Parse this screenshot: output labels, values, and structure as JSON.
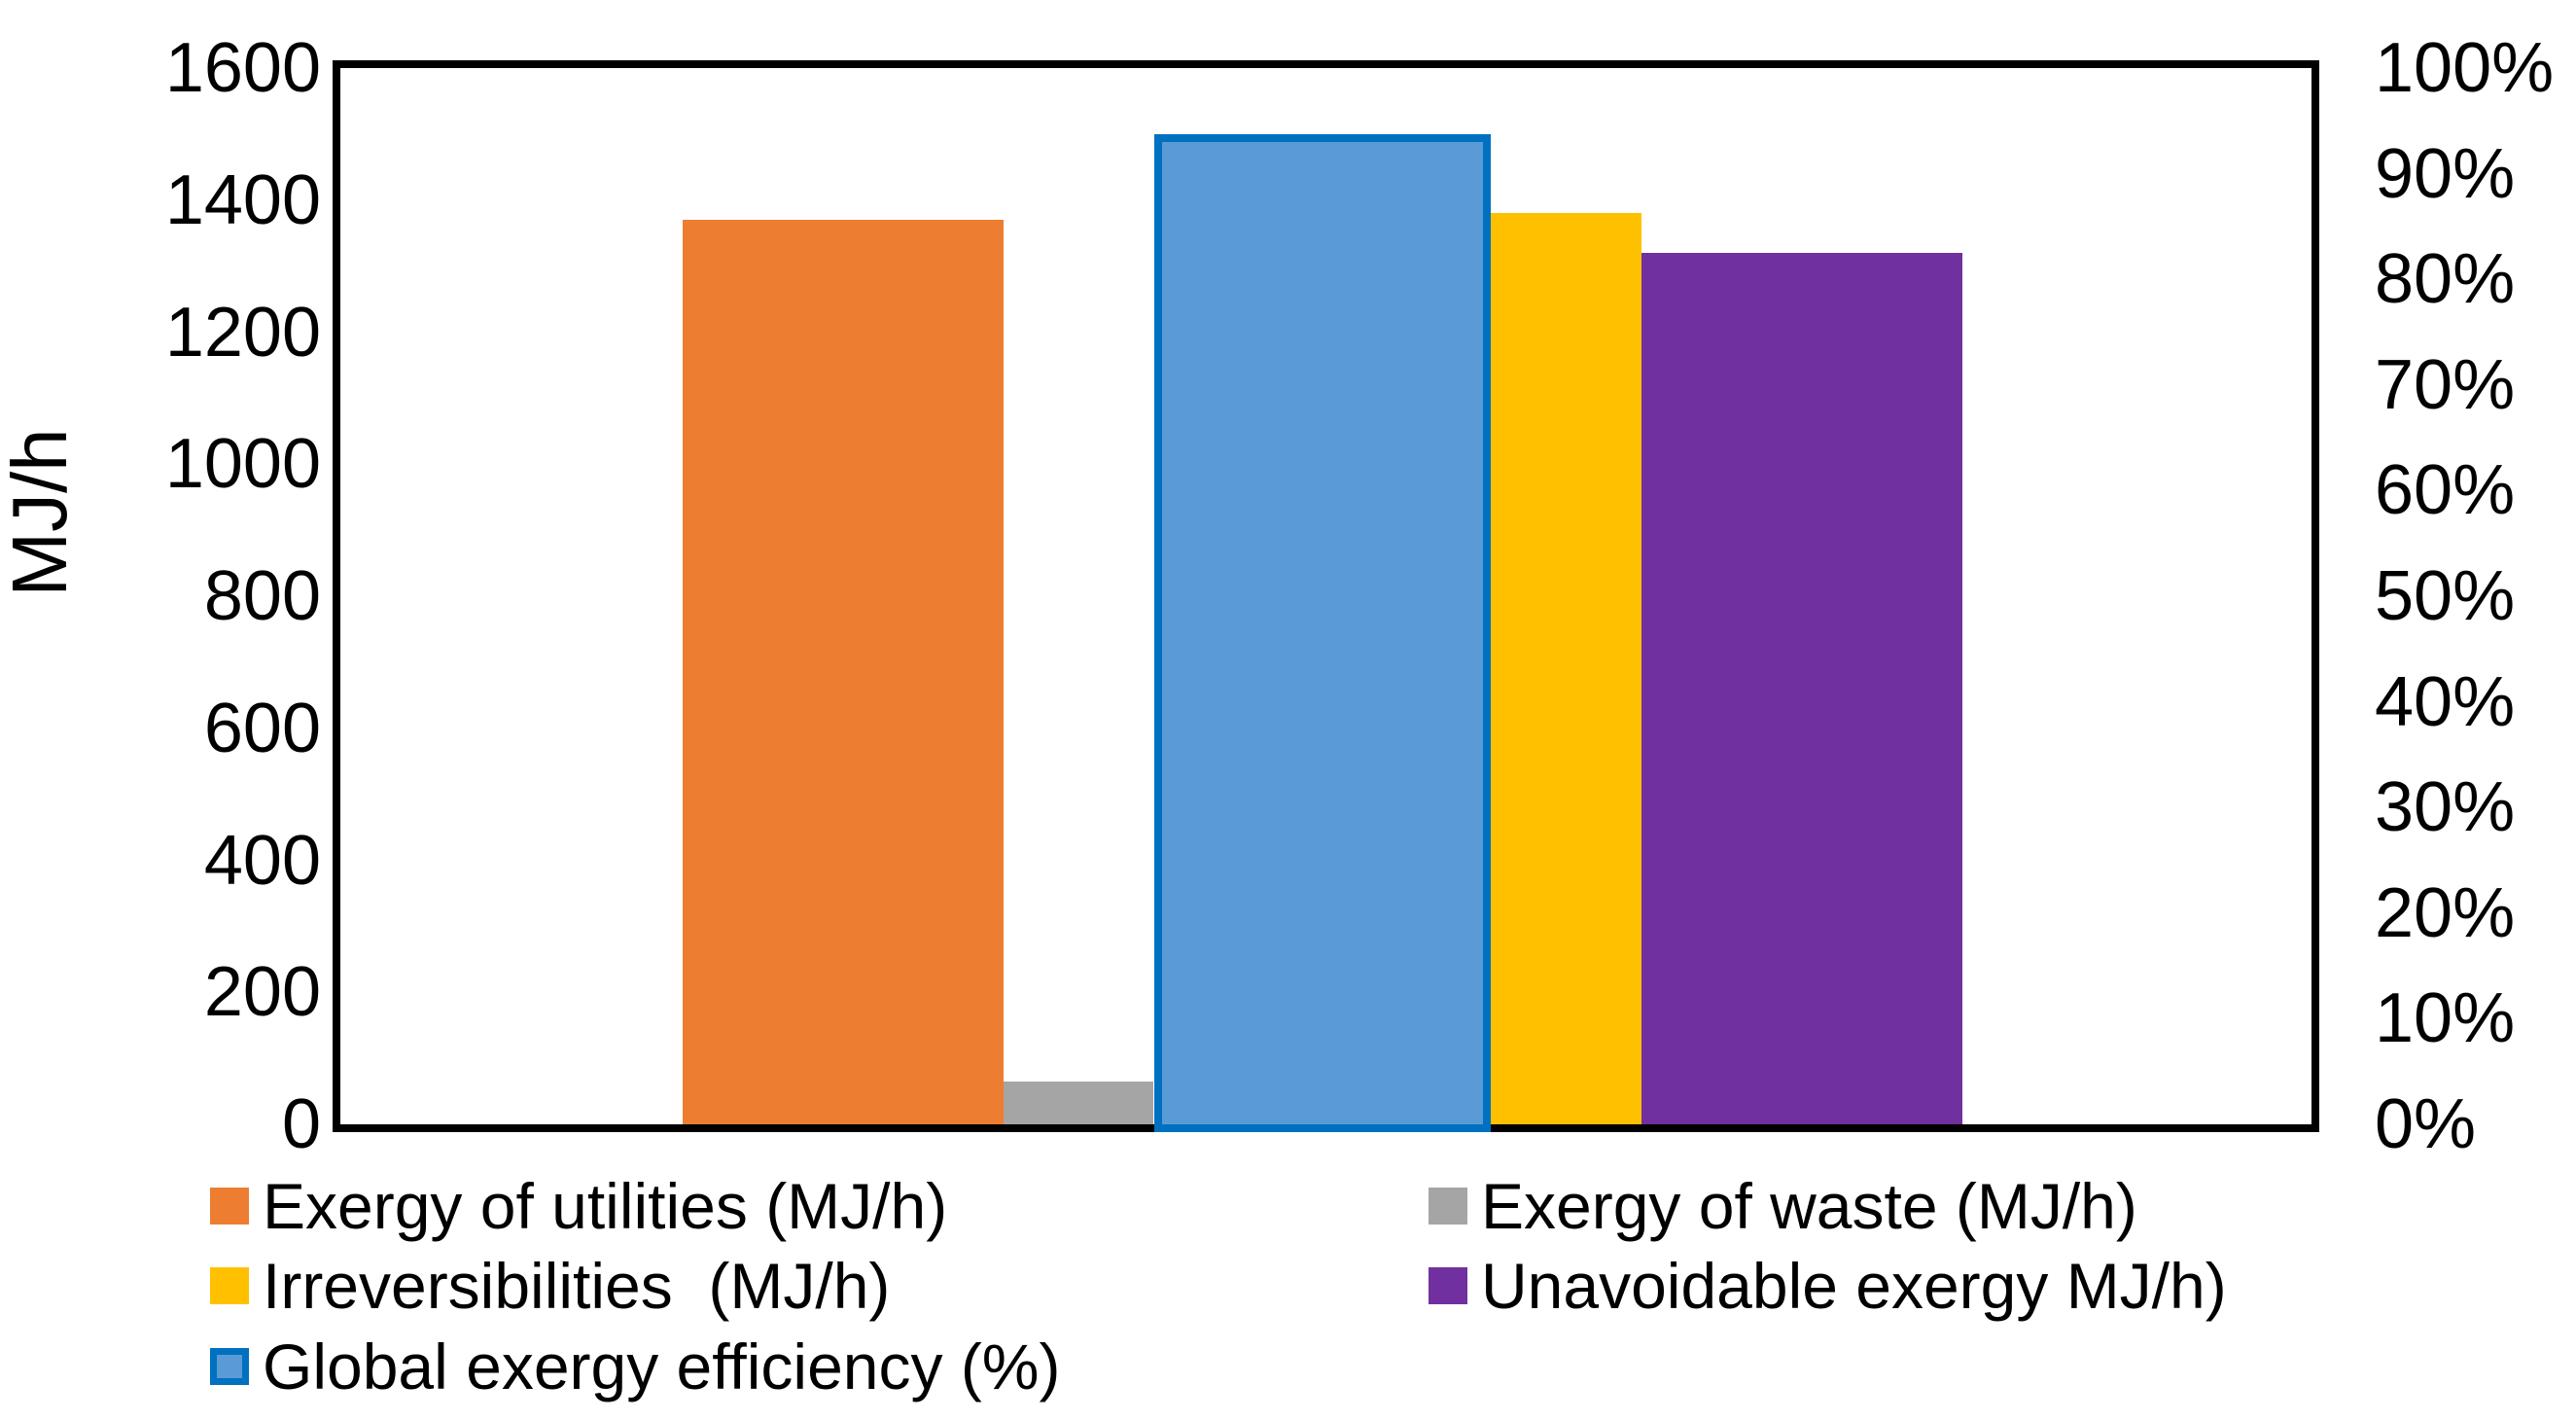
{
  "chart_data": {
    "type": "bar",
    "title": "",
    "left_axis": {
      "label": "MJ/h",
      "min": 0,
      "max": 1600,
      "ticks": [
        "1600",
        "1400",
        "1200",
        "1000",
        "800",
        "600",
        "400",
        "200",
        "0"
      ]
    },
    "right_axis": {
      "label": "",
      "min": 0,
      "max": 100,
      "unit": "%",
      "ticks": [
        "100%",
        "90%",
        "80%",
        "70%",
        "60%",
        "50%",
        "40%",
        "30%",
        "20%",
        "10%",
        "0%"
      ]
    },
    "categories": [
      ""
    ],
    "series": [
      {
        "name": "Exergy of utilities (MJ/h)",
        "value": 1370,
        "axis": "left",
        "color": "#ED7D31"
      },
      {
        "name": "Exergy of waste (MJ/h)",
        "value": 65,
        "axis": "left",
        "color": "#A5A5A5"
      },
      {
        "name": "Global exergy efficiency (%)",
        "value": 93,
        "axis": "right",
        "color": "#5B9BD5",
        "border_color": "#0070C0"
      },
      {
        "name": "Irreversibilities  (MJ/h)",
        "value": 1380,
        "axis": "left",
        "color": "#FFC000"
      },
      {
        "name": "Unavoidable exergy MJ/h)",
        "value": 1320,
        "axis": "left",
        "color": "#7030A0"
      }
    ],
    "legend": {
      "position": "bottom",
      "items": [
        {
          "label": "Exergy of utilities (MJ/h)",
          "color": "#ED7D31",
          "col": 0,
          "row": 0
        },
        {
          "label": "Exergy of waste (MJ/h)",
          "color": "#A5A5A5",
          "col": 1,
          "row": 0
        },
        {
          "label": "Irreversibilities  (MJ/h)",
          "color": "#FFC000",
          "col": 0,
          "row": 1
        },
        {
          "label": "Unavoidable exergy MJ/h)",
          "color": "#7030A0",
          "col": 1,
          "row": 1
        },
        {
          "label": "Global exergy efficiency (%)",
          "color": "#5B9BD5",
          "border_color": "#0070C0",
          "col": 0,
          "row": 2
        }
      ]
    },
    "layout_hints": {
      "grid": "off",
      "plot_border": "on",
      "background": "#ffffff",
      "axis_color": "#000000"
    }
  }
}
